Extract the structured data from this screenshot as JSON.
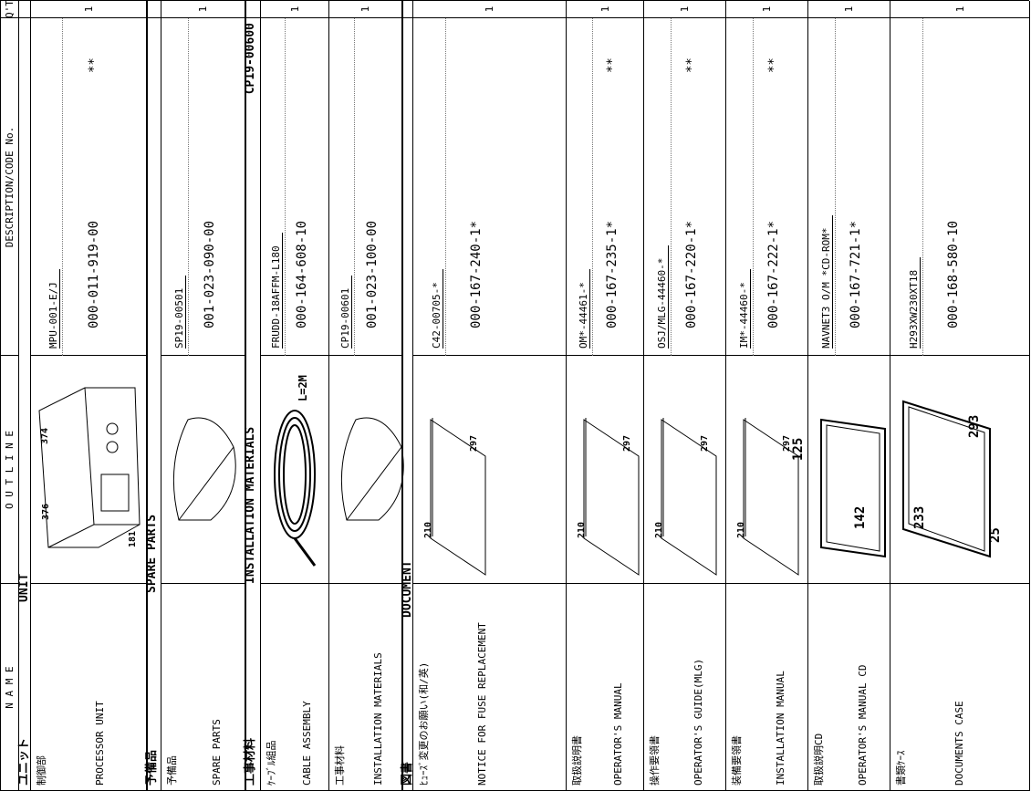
{
  "header": [
    "N A M E",
    "O U T L I N E",
    "DESCRIPTION/CODE No.",
    "Q'TY"
  ],
  "sections": [
    {
      "title_jp": "ユニット",
      "title_en": "UNIT",
      "items": [
        {
          "name_jp": "制御部",
          "name_en": "PROCESSOR UNIT",
          "type": "MPU-001-E/J",
          "code": "000-011-919-00",
          "mark": "**",
          "qty": "1",
          "dims": [
            "374",
            "376",
            "181"
          ]
        }
      ]
    },
    {
      "title_jp": "予備品",
      "title_en": "SPARE PARTS",
      "items": [
        {
          "name_jp": "予備品",
          "name_en": "SPARE PARTS",
          "type": "SP19-00501",
          "code": "001-023-090-00",
          "qty": "1"
        }
      ]
    },
    {
      "title_jp": "工事材料",
      "title_en": "INSTALLATION MATERIALS",
      "code": "CP19-00600",
      "items": [
        {
          "name_jp": "ｹｰﾌﾞﾙ組品",
          "name_en": "CABLE ASSEMBLY",
          "type": "FRUDD-18AFFM-L180",
          "code": "000-164-608-10",
          "qty": "1",
          "dims": [
            "L=2M"
          ]
        },
        {
          "name_jp": "工事材料",
          "name_en": "INSTALLATION MATERIALS",
          "type": "CP19-00601",
          "code": "001-023-100-00",
          "qty": "1"
        }
      ]
    },
    {
      "title_jp": "図書",
      "title_en": "DOCUMENT",
      "items": [
        {
          "name_jp": "ﾋｭｰｽﾞ変更のお願い(和/英)",
          "name_en": "NOTICE FOR FUSE REPLACEMENT",
          "type": "C42-00705-*",
          "code": "000-167-240-1*",
          "qty": "1",
          "dims": [
            "210",
            "297"
          ]
        },
        {
          "name_jp": "取扱説明書",
          "name_en": "OPERATOR'S MANUAL",
          "type": "OM*-44461-*",
          "code": "000-167-235-1*",
          "mark": "**",
          "qty": "1",
          "dims": [
            "210",
            "297"
          ]
        },
        {
          "name_jp": "操作要領書",
          "name_en": "OPERATOR'S GUIDE(MLG)",
          "type": "OSJ/MLG-44460-*",
          "code": "000-167-220-1*",
          "mark": "**",
          "qty": "1",
          "dims": [
            "210",
            "297"
          ]
        },
        {
          "name_jp": "装備要領書",
          "name_en": "INSTALLATION MANUAL",
          "type": "IM*-44460-*",
          "code": "000-167-222-1*",
          "mark": "**",
          "qty": "1",
          "dims": [
            "210",
            "297"
          ]
        },
        {
          "name_jp": "取扱説明CD",
          "name_en": "OPERATOR'S MANUAL CD",
          "type": "NAVNET3 O/M *CD-ROM*",
          "code": "000-167-721-1*",
          "qty": "1",
          "dims": [
            "142",
            "125"
          ]
        },
        {
          "name_jp": "書類ｹｰｽ",
          "name_en": "DOCUMENTS CASE",
          "type": "H293XW230XT18",
          "code": "000-168-580-10",
          "qty": "1",
          "dims": [
            "233",
            "293",
            "25"
          ]
        }
      ]
    }
  ]
}
